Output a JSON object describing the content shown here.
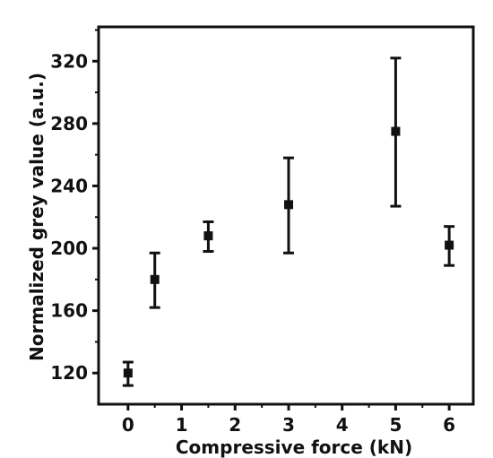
{
  "chart_data": {
    "type": "scatter",
    "title": "",
    "xlabel": "Compressive force (kN)",
    "ylabel": "Normalized grey value (a.u.)",
    "xlim": [
      -0.55,
      6.45
    ],
    "ylim": [
      100,
      342
    ],
    "xticks": [
      0,
      1,
      2,
      3,
      4,
      5,
      6
    ],
    "yticks": [
      120,
      160,
      200,
      240,
      280,
      320
    ],
    "grid": false,
    "legend": "none",
    "series": [
      {
        "x": [
          0,
          0.5,
          1.5,
          3,
          5,
          6
        ],
        "y": [
          120,
          180,
          208,
          228,
          275,
          202
        ],
        "error_low": [
          112,
          162,
          198,
          197,
          227,
          189
        ],
        "error_high": [
          127,
          197,
          217,
          258,
          322,
          214
        ]
      }
    ],
    "colors": {
      "marker": "#111111",
      "axis": "#111111"
    }
  }
}
